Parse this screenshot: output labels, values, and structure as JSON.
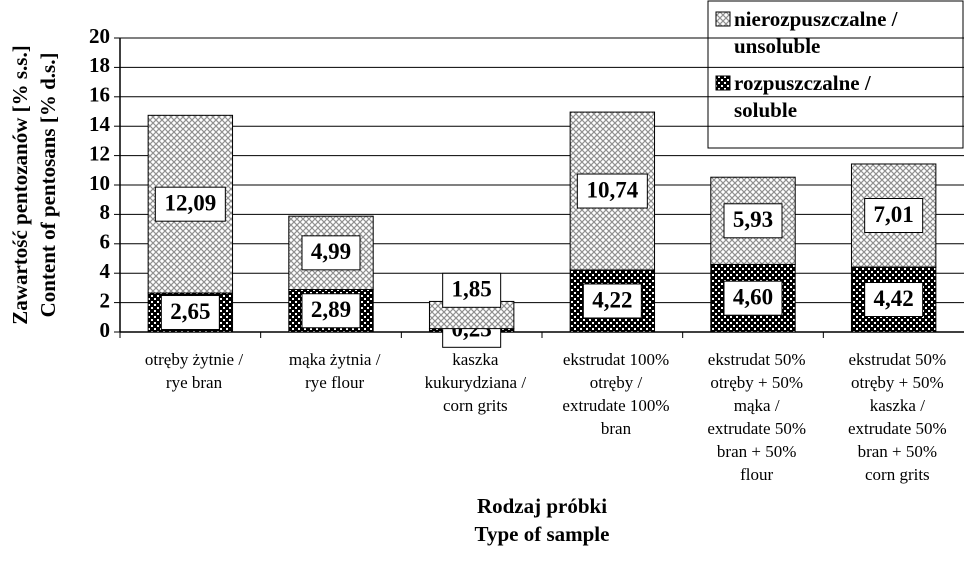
{
  "chart_data": {
    "type": "stacked_bar",
    "y_label": [
      "Zawartość pentozanów [% s.s.]",
      "Content of pentosans [% d.s.]"
    ],
    "x_label": [
      "Rodzaj próbki",
      "Type of sample"
    ],
    "categories": [
      "otręby żytnie /\nrye bran",
      "mąka żytnia /\nrye flour",
      "kaszka\nkukurydziana /\ncorn grits",
      "ekstrudat 100%\notręby /\nextrudate 100%\nbran",
      "ekstrudat 50%\notręby + 50%\nmąka /\nextrudate 50%\nbran + 50%\nflour",
      "ekstrudat 50%\notręby + 50%\nkaszka /\nextrudate 50%\nbran + 50%\ncorn grits"
    ],
    "series": [
      {
        "name": "rozpuszczalne /\nsoluble",
        "color": "#000000",
        "values": [
          2.65,
          2.89,
          0.23,
          4.22,
          4.6,
          4.42
        ],
        "value_labels": [
          "2,65",
          "2,89",
          "0,23",
          "4,22",
          "4,60",
          "4,42"
        ]
      },
      {
        "name": "nierozpuszczalne /\nunsoluble",
        "color": "#909090",
        "values": [
          12.09,
          4.99,
          1.85,
          10.74,
          5.93,
          7.01
        ],
        "value_labels": [
          "12,09",
          "4,99",
          "1,85",
          "10,74",
          "5,93",
          "7,01"
        ]
      }
    ],
    "ylim": [
      0,
      20
    ],
    "yticks": [
      0,
      2,
      4,
      6,
      8,
      10,
      12,
      14,
      16,
      18,
      20
    ],
    "grid": true,
    "legend": "top-right"
  }
}
